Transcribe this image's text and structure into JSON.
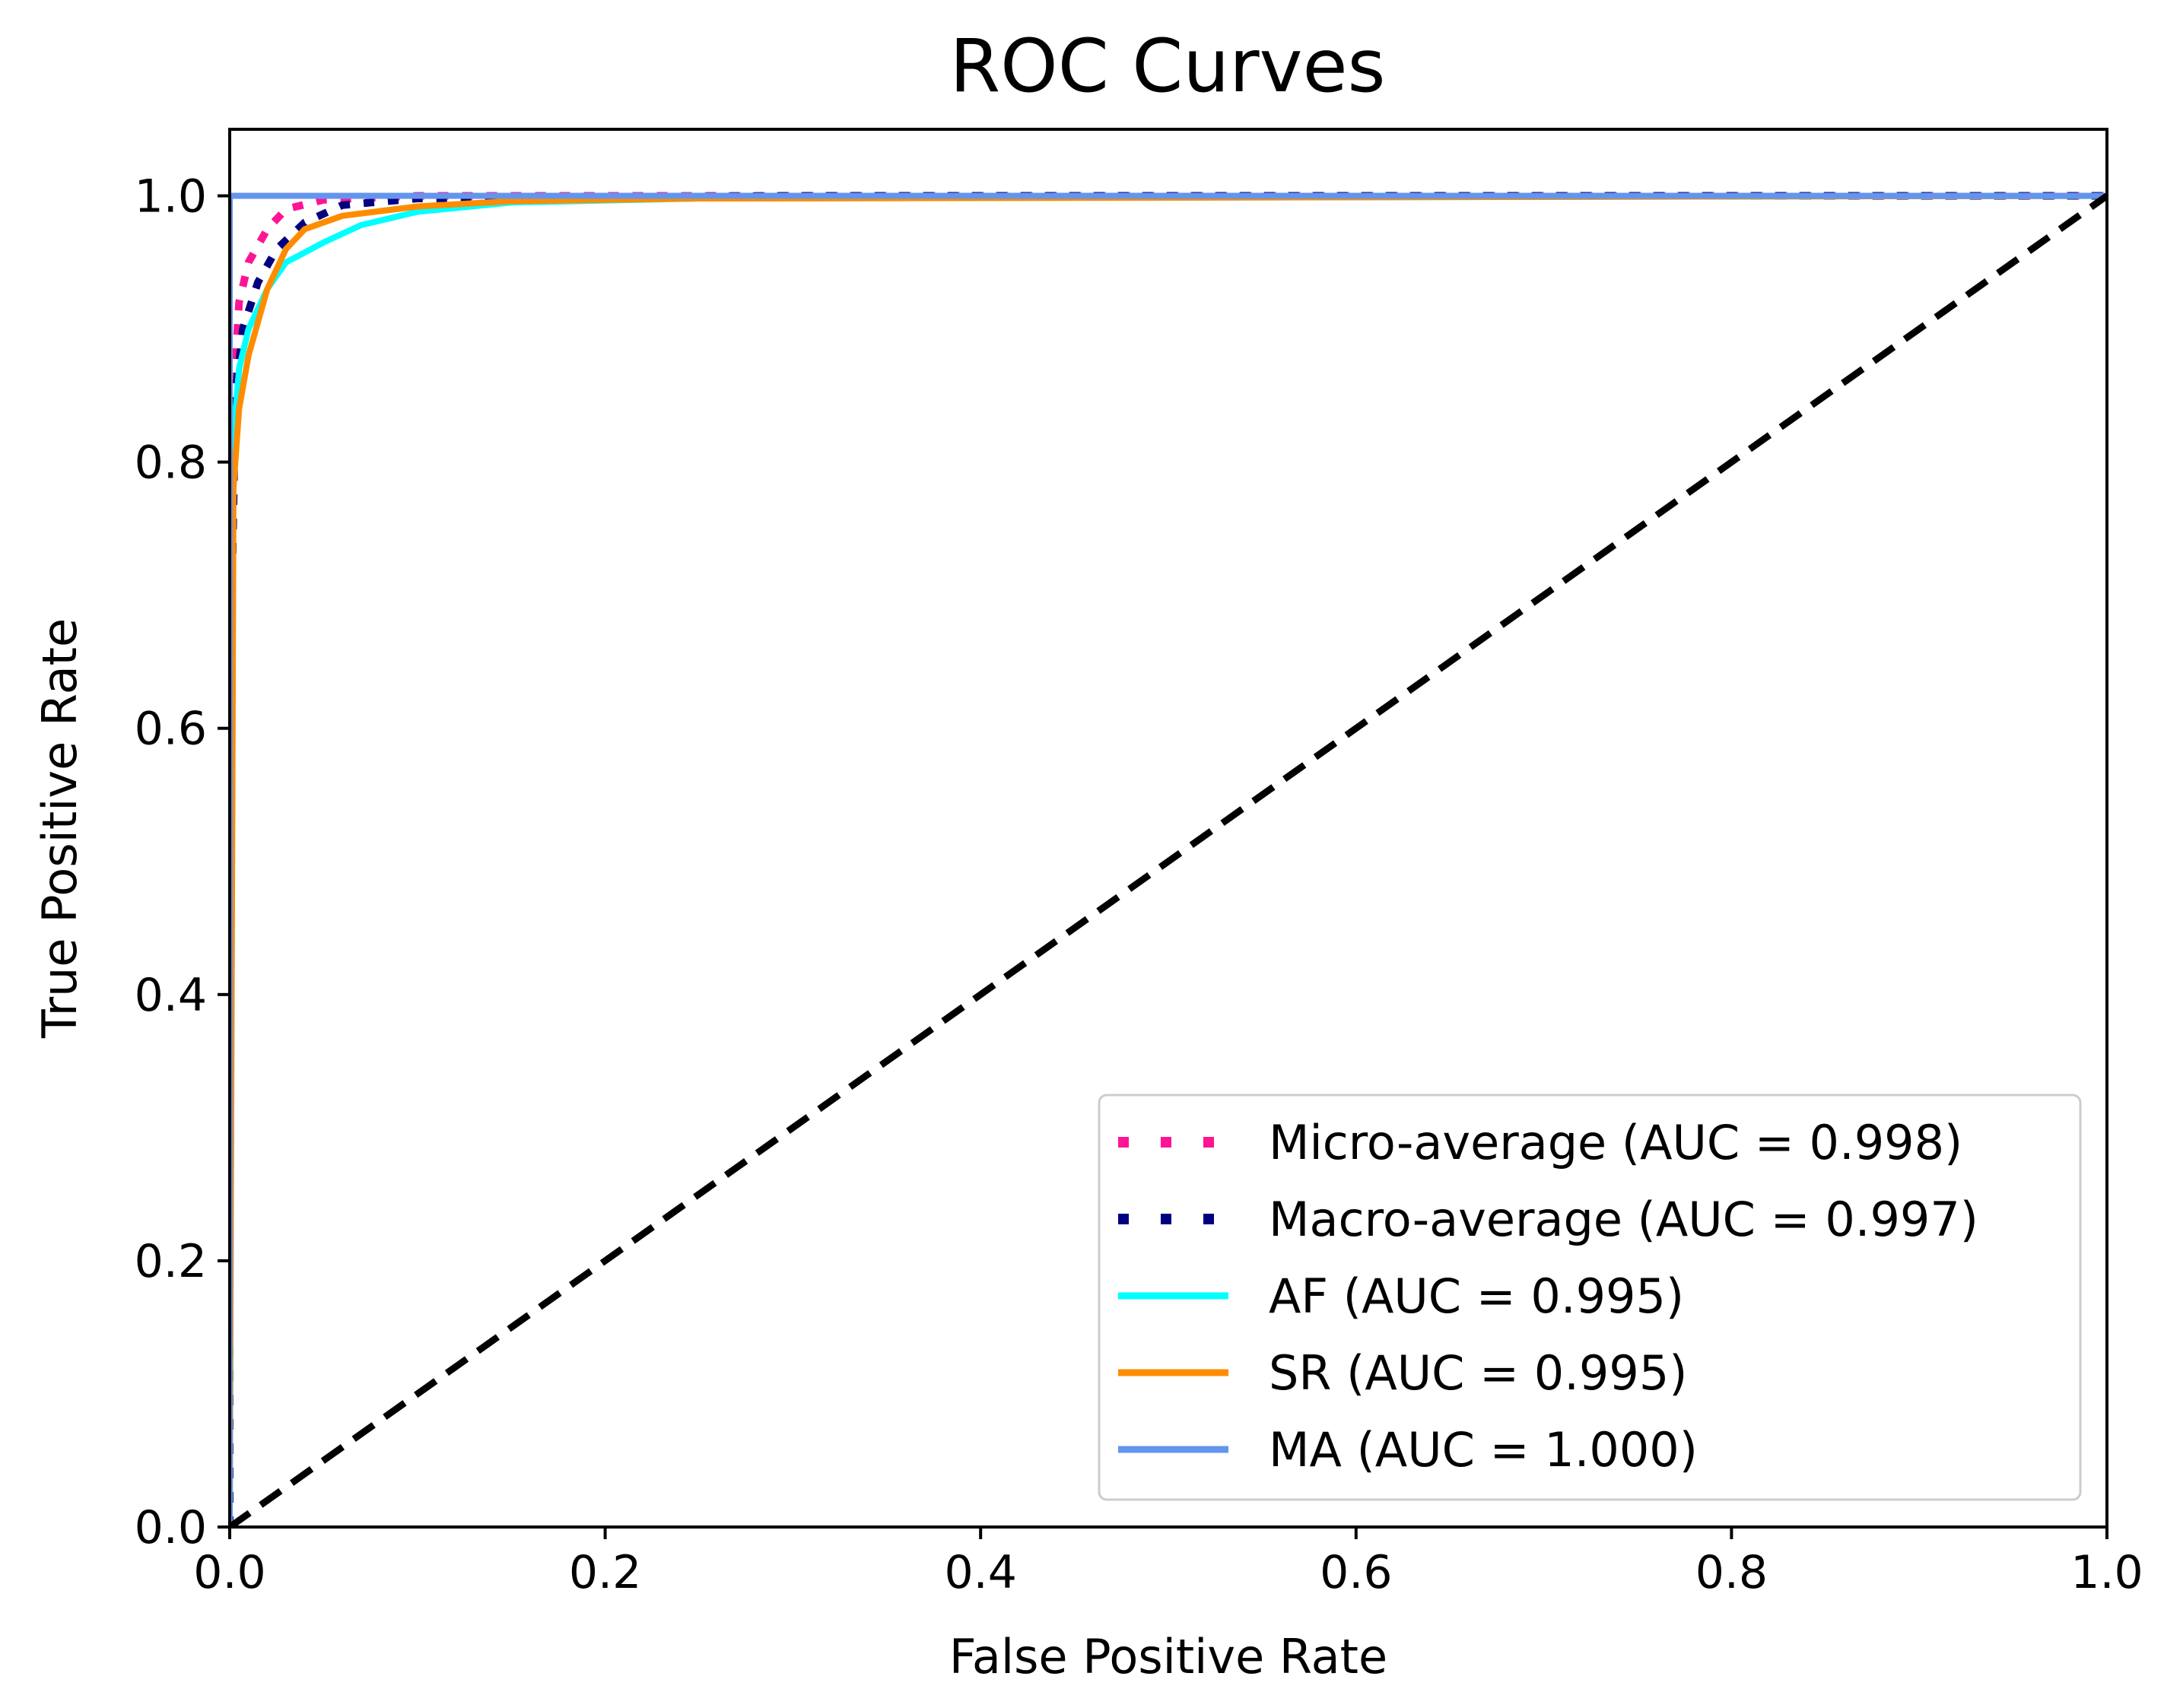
{
  "chart_data": {
    "type": "line",
    "title": "ROC Curves",
    "xlabel": "False Positive Rate",
    "ylabel": "True Positive Rate",
    "xlim": [
      0.0,
      1.0
    ],
    "ylim": [
      0.0,
      1.05
    ],
    "xticks": [
      0.0,
      0.2,
      0.4,
      0.6,
      0.8,
      1.0
    ],
    "yticks": [
      0.0,
      0.2,
      0.4,
      0.6,
      0.8,
      1.0
    ],
    "xtick_labels": [
      "0.0",
      "0.2",
      "0.4",
      "0.6",
      "0.8",
      "1.0"
    ],
    "ytick_labels": [
      "0.0",
      "0.2",
      "0.4",
      "0.6",
      "0.8",
      "1.0"
    ],
    "grid": false,
    "legend_position": "lower-right",
    "series": [
      {
        "name": "Micro-average",
        "label": "Micro-average (AUC = 0.998)",
        "auc": 0.998,
        "color": "#ff1493",
        "style": "dotted",
        "x": [
          0.0,
          0.0,
          0.002,
          0.005,
          0.01,
          0.02,
          0.03,
          0.05,
          0.1,
          0.3,
          1.0
        ],
        "y": [
          0.0,
          0.6,
          0.85,
          0.92,
          0.95,
          0.975,
          0.99,
          0.997,
          1.0,
          1.0,
          1.0
        ]
      },
      {
        "name": "Macro-average",
        "label": "Macro-average (AUC = 0.997)",
        "auc": 0.997,
        "color": "#000080",
        "style": "dotted",
        "x": [
          0.0,
          0.0,
          0.003,
          0.007,
          0.015,
          0.025,
          0.04,
          0.06,
          0.1,
          0.3,
          1.0
        ],
        "y": [
          0.0,
          0.6,
          0.85,
          0.9,
          0.935,
          0.96,
          0.98,
          0.993,
          0.998,
          1.0,
          1.0
        ]
      },
      {
        "name": "AF",
        "label": "AF (AUC = 0.995)",
        "auc": 0.995,
        "color": "#00ffff",
        "style": "solid",
        "x": [
          0.0,
          0.002,
          0.005,
          0.01,
          0.02,
          0.03,
          0.05,
          0.07,
          0.1,
          0.15,
          0.25,
          1.0
        ],
        "y": [
          0.0,
          0.82,
          0.87,
          0.9,
          0.93,
          0.95,
          0.965,
          0.978,
          0.988,
          0.995,
          0.998,
          1.0
        ]
      },
      {
        "name": "SR",
        "label": "SR (AUC = 0.995)",
        "auc": 0.995,
        "color": "#ff8c00",
        "style": "solid",
        "x": [
          0.0,
          0.002,
          0.005,
          0.01,
          0.02,
          0.03,
          0.04,
          0.06,
          0.1,
          0.15,
          0.25,
          1.0
        ],
        "y": [
          0.0,
          0.78,
          0.84,
          0.88,
          0.93,
          0.96,
          0.975,
          0.985,
          0.992,
          0.996,
          0.998,
          1.0
        ]
      },
      {
        "name": "MA",
        "label": "MA (AUC = 1.000)",
        "auc": 1.0,
        "color": "#6495ed",
        "style": "solid",
        "x": [
          0.0,
          0.0,
          1.0
        ],
        "y": [
          0.0,
          1.0,
          1.0
        ]
      }
    ],
    "reference_line": {
      "name": "chance",
      "color": "#000000",
      "style": "dashed",
      "x": [
        0.0,
        1.0
      ],
      "y": [
        0.0,
        1.0
      ]
    }
  }
}
